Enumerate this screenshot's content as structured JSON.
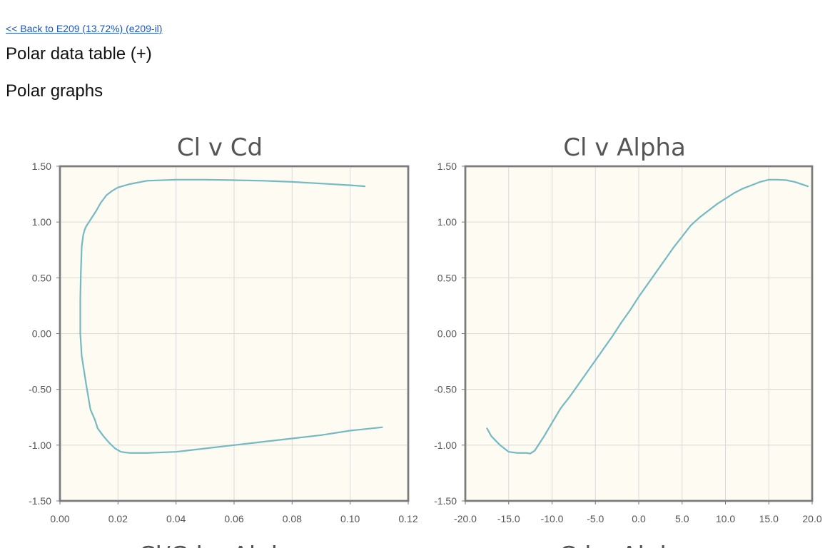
{
  "page": {
    "back_link": "<< Back to E209 (13.72%) (e209-il)",
    "table_heading": "Polar data table (+)",
    "graphs_heading": "Polar graphs",
    "cut_titles": [
      "Cl/Cd v Alpha",
      "Cd v Alpha"
    ]
  },
  "colors": {
    "line": "#74b9c3",
    "plot_bg": "#fdfbf2",
    "link": "#1a55c8"
  },
  "chart_data": [
    {
      "type": "line",
      "title": "Cl v Cd",
      "xlabel": "",
      "ylabel": "",
      "xlim": [
        0,
        0.12
      ],
      "ylim": [
        -1.5,
        1.5
      ],
      "xticks": [
        "0.00",
        "0.02",
        "0.04",
        "0.06",
        "0.08",
        "0.10",
        "0.12"
      ],
      "yticks": [
        "1.50",
        "1.00",
        "0.50",
        "0.00",
        "-0.50",
        "-1.00",
        "-1.50"
      ],
      "grid": true,
      "series": [
        {
          "x": [
            0.111,
            0.1,
            0.09,
            0.08,
            0.07,
            0.06,
            0.05,
            0.04,
            0.03,
            0.024,
            0.021,
            0.019,
            0.017,
            0.015,
            0.013,
            0.012,
            0.0105,
            0.009,
            0.0075,
            0.007,
            0.007,
            0.0072,
            0.0075,
            0.008,
            0.0085,
            0.009,
            0.01,
            0.011,
            0.0125,
            0.014,
            0.016,
            0.018,
            0.02,
            0.024,
            0.03,
            0.04,
            0.05,
            0.06,
            0.07,
            0.08,
            0.09,
            0.1,
            0.105
          ],
          "y": [
            -0.84,
            -0.87,
            -0.91,
            -0.94,
            -0.97,
            -1.0,
            -1.03,
            -1.06,
            -1.07,
            -1.07,
            -1.06,
            -1.03,
            -0.98,
            -0.92,
            -0.85,
            -0.77,
            -0.68,
            -0.45,
            -0.2,
            0.0,
            0.3,
            0.55,
            0.78,
            0.88,
            0.93,
            0.96,
            1.0,
            1.04,
            1.1,
            1.17,
            1.24,
            1.28,
            1.31,
            1.34,
            1.37,
            1.38,
            1.38,
            1.375,
            1.37,
            1.36,
            1.345,
            1.33,
            1.32
          ]
        }
      ]
    },
    {
      "type": "line",
      "title": "Cl v Alpha",
      "xlabel": "",
      "ylabel": "",
      "xlim": [
        -20,
        20
      ],
      "ylim": [
        -1.5,
        1.5
      ],
      "xticks": [
        "-20.0",
        "-15.0",
        "-10.0",
        "-5.0",
        "0.0",
        "5.0",
        "10.0",
        "15.0",
        "20.0"
      ],
      "yticks": [
        "1.50",
        "1.00",
        "0.50",
        "0.00",
        "-0.50",
        "-1.00",
        "-1.50"
      ],
      "grid": true,
      "series": [
        {
          "x": [
            -17.5,
            -17,
            -16,
            -15,
            -14,
            -13,
            -12.5,
            -12,
            -11,
            -10,
            -9,
            -8,
            -7,
            -6,
            -5,
            -4,
            -3,
            -2,
            -1,
            0,
            1,
            2,
            3,
            4,
            5,
            6,
            7,
            8,
            9,
            10,
            11,
            12,
            13,
            14,
            15,
            16,
            17,
            18,
            19.5
          ],
          "y": [
            -0.85,
            -0.92,
            -1.0,
            -1.06,
            -1.07,
            -1.07,
            -1.075,
            -1.05,
            -0.93,
            -0.8,
            -0.67,
            -0.57,
            -0.46,
            -0.35,
            -0.24,
            -0.13,
            -0.02,
            0.1,
            0.21,
            0.33,
            0.44,
            0.55,
            0.66,
            0.77,
            0.87,
            0.97,
            1.04,
            1.1,
            1.16,
            1.21,
            1.26,
            1.3,
            1.33,
            1.36,
            1.38,
            1.38,
            1.375,
            1.36,
            1.32
          ]
        }
      ]
    }
  ]
}
